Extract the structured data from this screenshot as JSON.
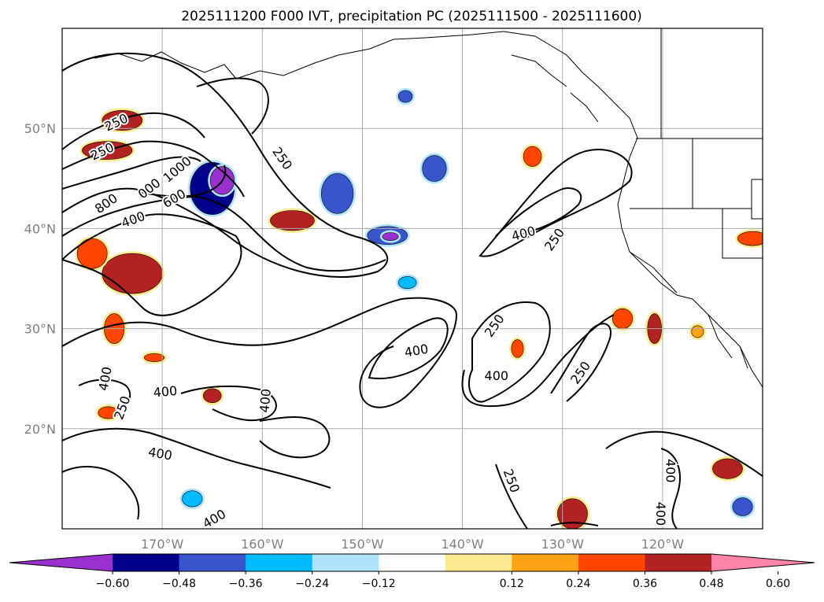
{
  "chart_data": {
    "type": "contour-map",
    "title": "2025111200 F000 IVT, precipitation PC (2025111500 - 2025111600)",
    "lon_range": [
      -180,
      -110
    ],
    "lat_range": [
      10,
      60
    ],
    "x_ticks": [
      {
        "lon": -170,
        "label": "170°W"
      },
      {
        "lon": -160,
        "label": "160°W"
      },
      {
        "lon": -150,
        "label": "150°W"
      },
      {
        "lon": -140,
        "label": "140°W"
      },
      {
        "lon": -130,
        "label": "130°W"
      },
      {
        "lon": -120,
        "label": "120°W"
      }
    ],
    "y_ticks": [
      {
        "lat": 20,
        "label": "20°N"
      },
      {
        "lat": 30,
        "label": "30°N"
      },
      {
        "lat": 40,
        "label": "40°N"
      },
      {
        "lat": 50,
        "label": "50°N"
      }
    ],
    "grid": true,
    "ivt_contour_levels": [
      250,
      400,
      600,
      800,
      1000
    ],
    "contour_labels": [
      {
        "text": "250",
        "lon": -174.6,
        "lat": 50.6,
        "rot": -25
      },
      {
        "text": "250",
        "lon": -176.0,
        "lat": 47.7,
        "rot": -25
      },
      {
        "text": "1000",
        "lon": -168.5,
        "lat": 45.9,
        "rot": -40
      },
      {
        "text": "000",
        "lon": -171.3,
        "lat": 44.0,
        "rot": -38
      },
      {
        "text": "800",
        "lon": -175.6,
        "lat": 42.5,
        "rot": -35
      },
      {
        "text": "600",
        "lon": -168.8,
        "lat": 43.0,
        "rot": -30
      },
      {
        "text": "400",
        "lon": -172.9,
        "lat": 40.9,
        "rot": -20
      },
      {
        "text": "250",
        "lon": -158.0,
        "lat": 47.0,
        "rot": 55
      },
      {
        "text": "400",
        "lon": -133.9,
        "lat": 39.5,
        "rot": -15
      },
      {
        "text": "250",
        "lon": -130.8,
        "lat": 38.9,
        "rot": -55
      },
      {
        "text": "400",
        "lon": -144.6,
        "lat": 27.8,
        "rot": -10
      },
      {
        "text": "250",
        "lon": -136.8,
        "lat": 30.3,
        "rot": -55
      },
      {
        "text": "400",
        "lon": -136.6,
        "lat": 25.3,
        "rot": 0
      },
      {
        "text": "250",
        "lon": -128.2,
        "lat": 25.6,
        "rot": -55
      },
      {
        "text": "400",
        "lon": -175.7,
        "lat": 25.0,
        "rot": -80
      },
      {
        "text": "250",
        "lon": -174.0,
        "lat": 22.1,
        "rot": -70
      },
      {
        "text": "400",
        "lon": -169.7,
        "lat": 23.7,
        "rot": -5
      },
      {
        "text": "400",
        "lon": -170.2,
        "lat": 17.5,
        "rot": 10
      },
      {
        "text": "400",
        "lon": -159.7,
        "lat": 22.8,
        "rot": -85
      },
      {
        "text": "400",
        "lon": -164.8,
        "lat": 11.0,
        "rot": -30
      },
      {
        "text": "250",
        "lon": -135.1,
        "lat": 14.8,
        "rot": 70
      },
      {
        "text": "400",
        "lon": -119.2,
        "lat": 15.8,
        "rot": 90
      },
      {
        "text": "400",
        "lon": -120.2,
        "lat": 11.5,
        "rot": 90
      }
    ],
    "precip_pc_blobs": [
      {
        "lon": -165.0,
        "lat": 44.0,
        "rx": 2.2,
        "ry": 2.6,
        "level": -0.6
      },
      {
        "lon": -164.0,
        "lat": 44.8,
        "rx": 1.2,
        "ry": 1.4,
        "level": -0.72
      },
      {
        "lon": -152.5,
        "lat": 43.5,
        "rx": 1.6,
        "ry": 2.0,
        "level": -0.48
      },
      {
        "lon": -147.5,
        "lat": 39.3,
        "rx": 2.0,
        "ry": 0.9,
        "level": -0.48
      },
      {
        "lon": -147.2,
        "lat": 39.2,
        "rx": 0.8,
        "ry": 0.4,
        "level": -0.72
      },
      {
        "lon": -145.5,
        "lat": 34.6,
        "rx": 0.9,
        "ry": 0.6,
        "level": -0.36
      },
      {
        "lon": -142.8,
        "lat": 46.0,
        "rx": 1.2,
        "ry": 1.3,
        "level": -0.48
      },
      {
        "lon": -145.7,
        "lat": 53.2,
        "rx": 0.7,
        "ry": 0.6,
        "level": -0.48
      },
      {
        "lon": -174.0,
        "lat": 50.8,
        "rx": 2.0,
        "ry": 1.0,
        "level": 0.48
      },
      {
        "lon": -175.5,
        "lat": 47.8,
        "rx": 2.5,
        "ry": 0.9,
        "level": 0.48
      },
      {
        "lon": -173.0,
        "lat": 35.5,
        "rx": 3.0,
        "ry": 2.0,
        "level": 0.48
      },
      {
        "lon": -177.0,
        "lat": 37.5,
        "rx": 1.5,
        "ry": 1.5,
        "level": 0.36
      },
      {
        "lon": -157.0,
        "lat": 40.8,
        "rx": 2.2,
        "ry": 1.0,
        "level": 0.48
      },
      {
        "lon": -174.8,
        "lat": 30.0,
        "rx": 1.0,
        "ry": 1.5,
        "level": 0.36
      },
      {
        "lon": -170.8,
        "lat": 27.1,
        "rx": 1.0,
        "ry": 0.4,
        "level": 0.36
      },
      {
        "lon": -165.0,
        "lat": 23.3,
        "rx": 0.9,
        "ry": 0.7,
        "level": 0.48
      },
      {
        "lon": -175.4,
        "lat": 21.6,
        "rx": 1.0,
        "ry": 0.6,
        "level": 0.36
      },
      {
        "lon": -134.5,
        "lat": 28.0,
        "rx": 0.6,
        "ry": 0.9,
        "level": 0.36
      },
      {
        "lon": -120.8,
        "lat": 30.0,
        "rx": 0.7,
        "ry": 1.5,
        "level": 0.48
      },
      {
        "lon": -124.0,
        "lat": 31.0,
        "rx": 1.0,
        "ry": 1.0,
        "level": 0.36
      },
      {
        "lon": -113.5,
        "lat": 16.0,
        "rx": 1.5,
        "ry": 1.0,
        "level": 0.48
      },
      {
        "lon": -129.0,
        "lat": 11.5,
        "rx": 1.5,
        "ry": 1.5,
        "level": 0.48
      },
      {
        "lon": -133.0,
        "lat": 47.2,
        "rx": 0.9,
        "ry": 1.0,
        "level": 0.36
      },
      {
        "lon": -116.5,
        "lat": 29.7,
        "rx": 0.6,
        "ry": 0.6,
        "level": 0.24
      },
      {
        "lon": -111.0,
        "lat": 39.0,
        "rx": 1.5,
        "ry": 0.7,
        "level": 0.36
      },
      {
        "lon": -167.0,
        "lat": 13.0,
        "rx": 1.0,
        "ry": 0.8,
        "level": -0.36
      },
      {
        "lon": -112.0,
        "lat": 12.2,
        "rx": 1.0,
        "ry": 0.9,
        "level": -0.48
      }
    ],
    "colorbar": {
      "type": "horizontal",
      "extend": "both",
      "tick_labels": [
        "−0.60",
        "−0.48",
        "−0.36",
        "−0.24",
        "−0.12",
        "0.12",
        "0.24",
        "0.36",
        "0.48",
        "0.60"
      ],
      "segments": [
        {
          "from": "min",
          "to": -0.6,
          "color": "#9b30d0"
        },
        {
          "from": -0.6,
          "to": -0.48,
          "color": "#00008b"
        },
        {
          "from": -0.48,
          "to": -0.36,
          "color": "#3a55cc"
        },
        {
          "from": -0.36,
          "to": -0.24,
          "color": "#00bbff"
        },
        {
          "from": -0.24,
          "to": -0.12,
          "color": "#aee3fb"
        },
        {
          "from": -0.12,
          "to": 0.12,
          "color": "#ffffff"
        },
        {
          "from": 0.12,
          "to": 0.24,
          "color": "#fde98f"
        },
        {
          "from": 0.24,
          "to": 0.36,
          "color": "#fea316"
        },
        {
          "from": 0.36,
          "to": 0.48,
          "color": "#ff4500"
        },
        {
          "from": 0.48,
          "to": 0.6,
          "color": "#b22222"
        },
        {
          "from": 0.6,
          "to": "max",
          "color": "#ff85a8"
        }
      ]
    },
    "colors": {
      "grid": "#aaaaaa",
      "contour": "#000000",
      "tick_text": "#7f7f7f"
    }
  }
}
